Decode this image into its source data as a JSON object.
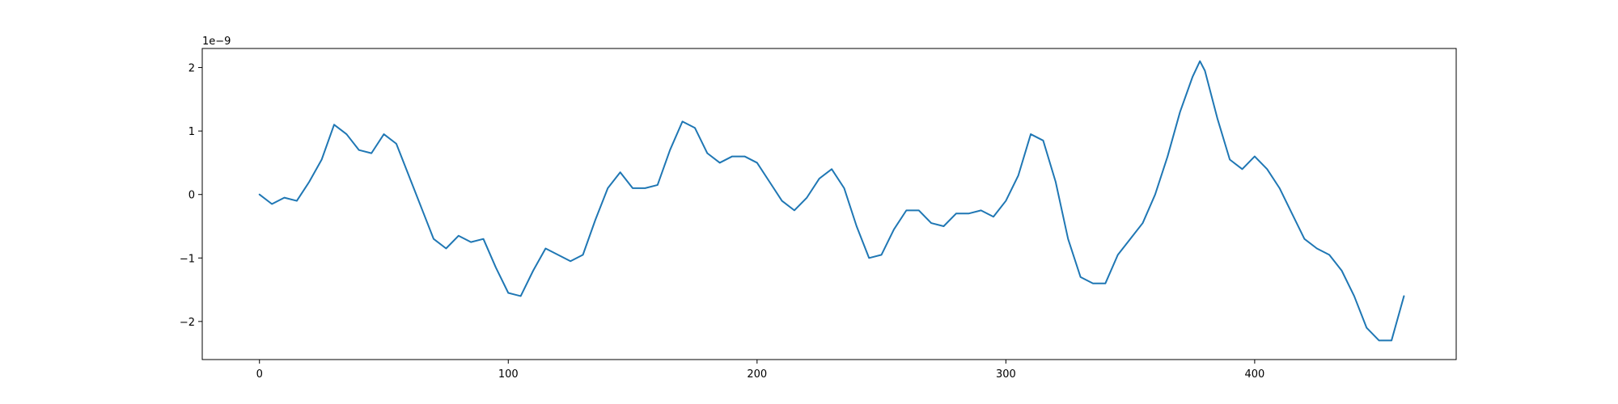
{
  "chart_data": {
    "type": "line",
    "title": "",
    "xlabel": "",
    "ylabel": "",
    "y_offset_label": "1e−9",
    "xlim": [
      -23,
      481
    ],
    "ylim": [
      -2.6,
      2.3
    ],
    "x_ticks": [
      0,
      100,
      200,
      300,
      400
    ],
    "x_tick_labels": [
      "0",
      "100",
      "200",
      "300",
      "400"
    ],
    "y_ticks": [
      -2,
      -1,
      0,
      1,
      2
    ],
    "y_tick_labels": [
      "−2",
      "−1",
      "0",
      "1",
      "2"
    ],
    "grid": false,
    "legend": "none",
    "line_color": "#1f77b4",
    "series": [
      {
        "x": [
          0,
          5,
          10,
          15,
          20,
          25,
          30,
          35,
          40,
          45,
          50,
          55,
          60,
          65,
          70,
          75,
          80,
          85,
          90,
          95,
          100,
          105,
          110,
          115,
          120,
          125,
          130,
          135,
          140,
          145,
          150,
          155,
          160,
          165,
          170,
          175,
          180,
          185,
          190,
          195,
          200,
          205,
          210,
          215,
          220,
          225,
          230,
          235,
          240,
          245,
          250,
          255,
          260,
          265,
          270,
          275,
          280,
          285,
          290,
          295,
          300,
          305,
          310,
          315,
          320,
          325,
          330,
          335,
          340,
          345,
          350,
          355,
          360,
          365,
          370,
          375,
          378,
          380,
          385,
          390,
          395,
          400,
          405,
          410,
          415,
          420,
          425,
          430,
          435,
          440,
          445,
          450,
          455,
          460
        ],
        "values": [
          0.0,
          -0.15,
          -0.05,
          -0.1,
          0.2,
          0.55,
          1.1,
          0.95,
          0.7,
          0.65,
          0.95,
          0.8,
          0.3,
          -0.2,
          -0.7,
          -0.85,
          -0.65,
          -0.75,
          -0.7,
          -1.15,
          -1.55,
          -1.6,
          -1.2,
          -0.85,
          -0.95,
          -1.05,
          -0.95,
          -0.4,
          0.1,
          0.35,
          0.1,
          0.1,
          0.15,
          0.7,
          1.15,
          1.05,
          0.65,
          0.5,
          0.6,
          0.6,
          0.5,
          0.2,
          -0.1,
          -0.25,
          -0.05,
          0.25,
          0.4,
          0.1,
          -0.5,
          -1.0,
          -0.95,
          -0.55,
          -0.25,
          -0.25,
          -0.45,
          -0.5,
          -0.3,
          -0.3,
          -0.25,
          -0.35,
          -0.1,
          0.3,
          0.95,
          0.85,
          0.2,
          -0.7,
          -1.3,
          -1.4,
          -1.4,
          -0.95,
          -0.7,
          -0.45,
          0.0,
          0.6,
          1.3,
          1.85,
          2.1,
          1.95,
          1.2,
          0.55,
          0.4,
          0.6,
          0.4,
          0.1,
          -0.3,
          -0.7,
          -0.85,
          -0.95,
          -1.2,
          -1.6,
          -2.1,
          -2.3,
          -2.3,
          -1.6
        ]
      }
    ]
  }
}
